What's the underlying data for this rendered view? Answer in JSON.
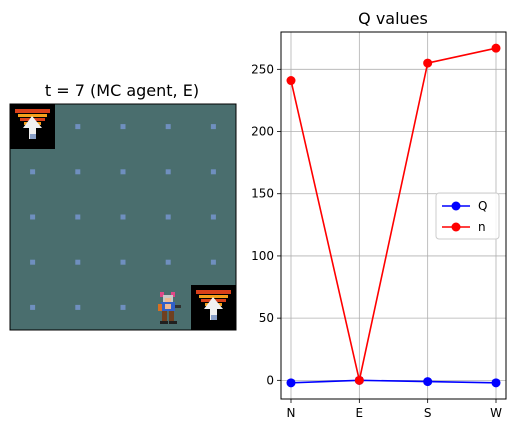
{
  "left_panel": {
    "title": "t = 7 (MC agent, E)",
    "grid_cols": 5,
    "grid_rows": 5,
    "background_color": "#4a6e6e",
    "dot_color": "#6f8fbf",
    "items": [
      {
        "type": "staircase-icon",
        "col": 0,
        "row": 0
      },
      {
        "type": "staircase-icon",
        "col": 4,
        "row": 4
      },
      {
        "type": "agent-icon",
        "col": 3,
        "row": 4
      }
    ]
  },
  "chart_data": {
    "type": "line",
    "title": "Q values",
    "categories": [
      "N",
      "E",
      "S",
      "W"
    ],
    "series": [
      {
        "name": "Q",
        "values": [
          -2,
          0,
          -1,
          -2
        ],
        "color": "#0000ff"
      },
      {
        "name": "n",
        "values": [
          241,
          0,
          255,
          267
        ],
        "color": "#ff0000"
      }
    ],
    "ylim": [
      -15,
      280
    ],
    "yticks": [
      0,
      50,
      100,
      150,
      200,
      250
    ],
    "grid": true,
    "legend_position": "center-right"
  }
}
